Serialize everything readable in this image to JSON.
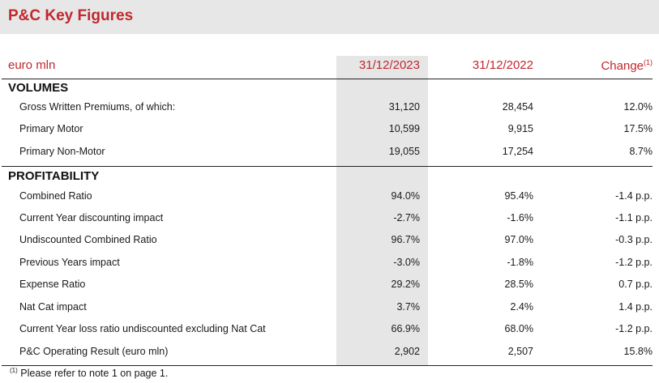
{
  "title": "P&C Key Figures",
  "header": {
    "unit_label": "euro mln",
    "col1": "31/12/2023",
    "col2": "31/12/2022",
    "col3": "Change",
    "col3_note": "(1)"
  },
  "sections": {
    "volumes": {
      "title": "VOLUMES",
      "rows": [
        {
          "label": "Gross Written Premiums, of which:",
          "v2023": "31,120",
          "v2022": "28,454",
          "change": "12.0%"
        },
        {
          "label": "Primary Motor",
          "v2023": "10,599",
          "v2022": "9,915",
          "change": "17.5%"
        },
        {
          "label": "Primary Non-Motor",
          "v2023": "19,055",
          "v2022": "17,254",
          "change": "8.7%"
        }
      ]
    },
    "profitability": {
      "title": "PROFITABILITY",
      "rows": [
        {
          "label": "Combined Ratio",
          "v2023": "94.0%",
          "v2022": "95.4%",
          "change": "-1.4 p.p."
        },
        {
          "label": "Current Year discounting impact",
          "v2023": "-2.7%",
          "v2022": "-1.6%",
          "change": "-1.1 p.p."
        },
        {
          "label": "Undiscounted Combined Ratio",
          "v2023": "96.7%",
          "v2022": "97.0%",
          "change": "-0.3 p.p."
        },
        {
          "label": "Previous Years impact",
          "v2023": "-3.0%",
          "v2022": "-1.8%",
          "change": "-1.2 p.p."
        },
        {
          "label": "Expense Ratio",
          "v2023": "29.2%",
          "v2022": "28.5%",
          "change": "0.7 p.p."
        },
        {
          "label": "Nat Cat impact",
          "v2023": "3.7%",
          "v2022": "2.4%",
          "change": "1.4 p.p."
        },
        {
          "label": "Current Year loss ratio undiscounted excluding Nat Cat",
          "v2023": "66.9%",
          "v2022": "68.0%",
          "change": "-1.2 p.p."
        },
        {
          "label": "P&C Operating Result (euro mln)",
          "v2023": "2,902",
          "v2022": "2,507",
          "change": "15.8%"
        }
      ]
    }
  },
  "footnote": {
    "marker": "(1)",
    "text": " Please refer to note 1 on page 1."
  },
  "colors": {
    "accent": "#c0282d",
    "title_bg": "#e7e7e7",
    "shaded_column": "#e6e6e6"
  }
}
